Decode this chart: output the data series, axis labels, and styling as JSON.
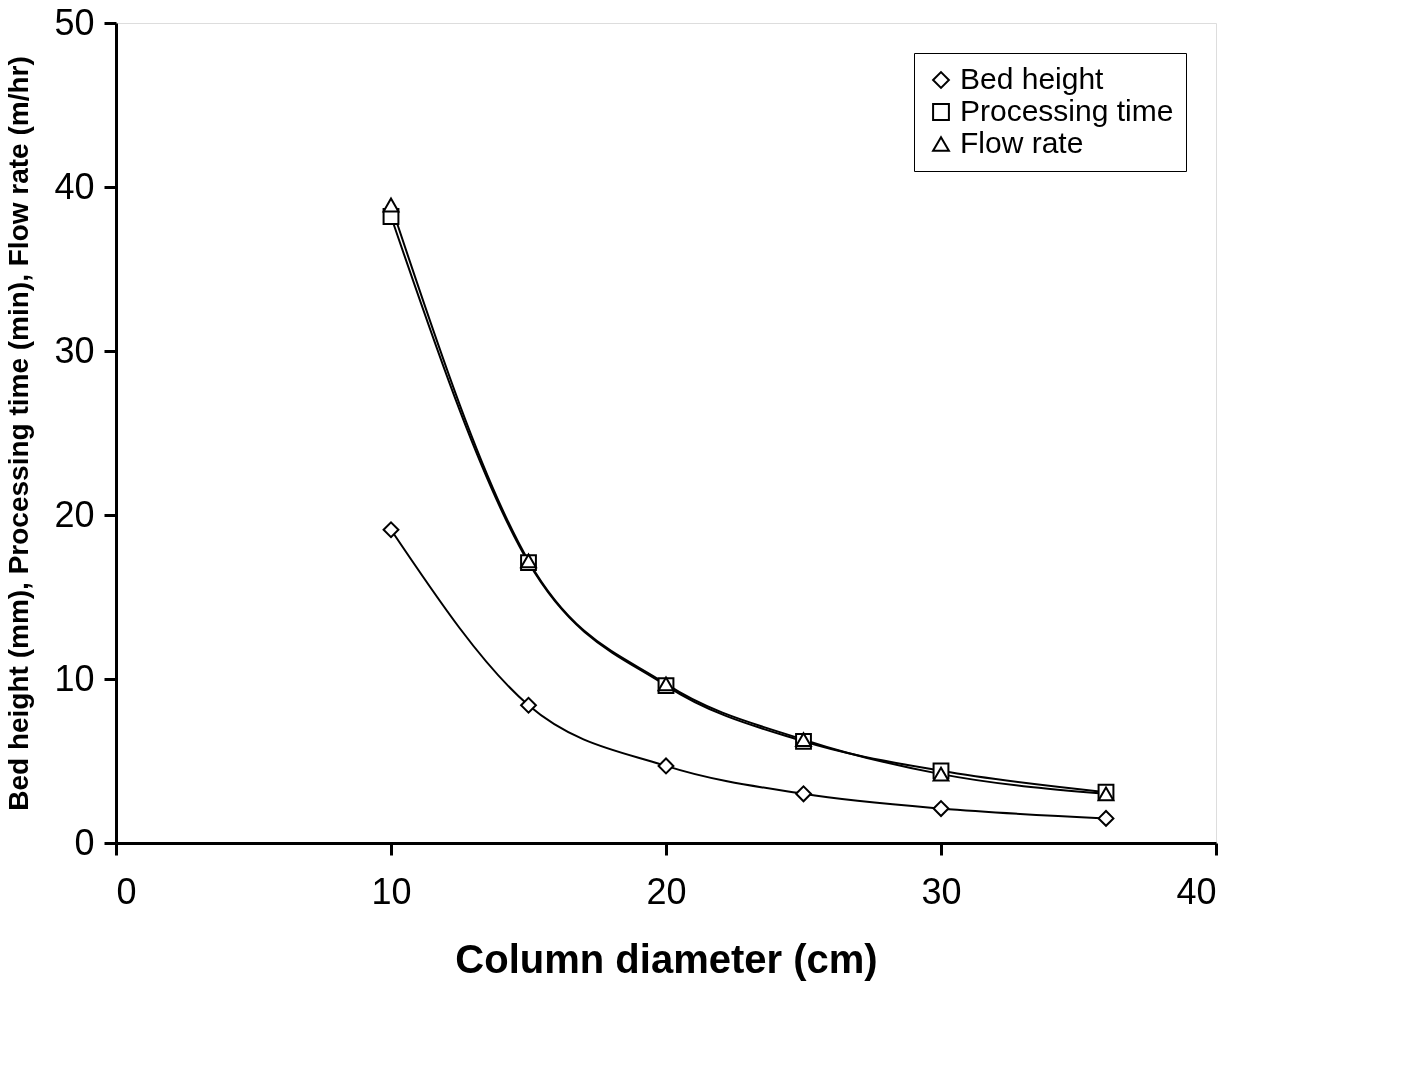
{
  "chart_data": {
    "type": "line",
    "xlabel": "Column diameter (cm)",
    "ylabel": "Bed height (mm), Processing time (min), Flow rate (m/hr)",
    "x": [
      10,
      15,
      20,
      25,
      30,
      36
    ],
    "series": [
      {
        "name": "Bed height",
        "color": "#000000",
        "marker": "diamond",
        "values": [
          19.1,
          8.4,
          4.7,
          3.0,
          2.1,
          1.5
        ]
      },
      {
        "name": "Processing time",
        "color": "#000000",
        "marker": "square",
        "values": [
          38.2,
          17.1,
          9.6,
          6.2,
          4.4,
          3.1
        ]
      },
      {
        "name": "Flow rate",
        "color": "#000000",
        "marker": "triangle",
        "values": [
          38.9,
          17.2,
          9.7,
          6.3,
          4.2,
          3.0
        ]
      }
    ],
    "xlim": [
      0,
      40
    ],
    "xticks": [
      0,
      10,
      20,
      30,
      40
    ],
    "ylim": [
      0,
      50
    ],
    "yticks": [
      0,
      10,
      20,
      30,
      40,
      50
    ],
    "grid": false,
    "legend": "top right",
    "line_style": "solid"
  }
}
